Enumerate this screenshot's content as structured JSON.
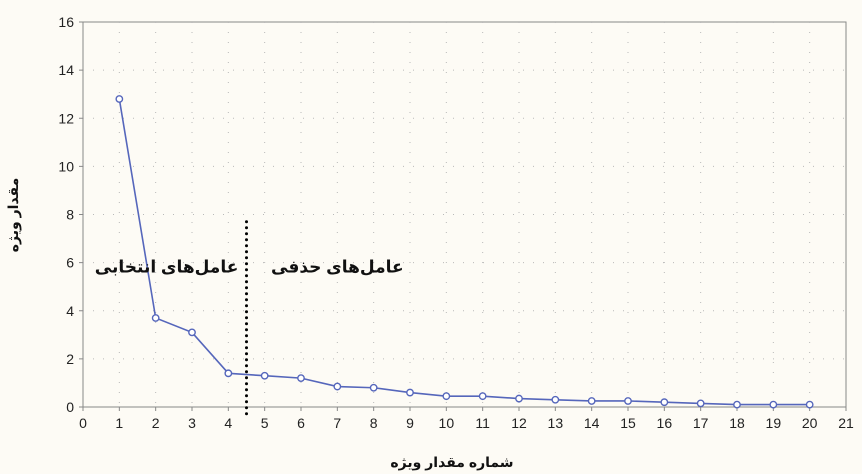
{
  "chart_data": {
    "type": "line",
    "title": "",
    "xlabel": "شماره مقدار ویژه",
    "ylabel": "مقدار ویژه",
    "xlim": [
      0,
      21
    ],
    "ylim": [
      0,
      16
    ],
    "x_ticks": [
      0,
      1,
      2,
      3,
      4,
      5,
      6,
      7,
      8,
      9,
      10,
      11,
      12,
      13,
      14,
      15,
      16,
      17,
      18,
      19,
      20,
      21
    ],
    "y_ticks": [
      0,
      2,
      4,
      6,
      8,
      10,
      12,
      14,
      16
    ],
    "grid": "dotted",
    "series": [
      {
        "x": [
          1,
          2,
          3,
          4,
          5,
          6,
          7,
          8,
          9,
          10,
          11,
          12,
          13,
          14,
          15,
          16,
          17,
          18,
          19,
          20
        ],
        "values": [
          12.8,
          3.7,
          3.1,
          1.4,
          1.3,
          1.2,
          0.85,
          0.8,
          0.6,
          0.45,
          0.45,
          0.35,
          0.3,
          0.25,
          0.25,
          0.2,
          0.15,
          0.1,
          0.1,
          0.1
        ]
      }
    ],
    "divider_x": 4.5,
    "annotations": [
      {
        "text": "عامل‌های انتخابی",
        "x": 2.3,
        "y": 5.6
      },
      {
        "text": "عامل‌های حذفی",
        "x": 7.0,
        "y": 5.6
      }
    ],
    "colors": {
      "line": "#5566bb",
      "grid": "#b9b9b9",
      "frame": "#888888",
      "divider": "#000000",
      "background": "#fdfbf5"
    }
  }
}
